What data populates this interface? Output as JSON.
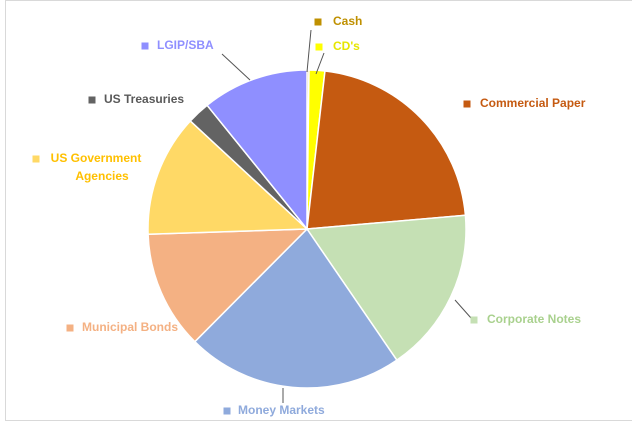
{
  "chart_data": {
    "type": "pie",
    "categories": [
      "Cash",
      "CD's",
      "Commercial Paper",
      "Corporate Notes",
      "Money Markets",
      "Municipal Bonds",
      "US Government Agencies",
      "US Treasuries",
      "LGIP/SBA"
    ],
    "values": [
      0.2,
      1.6,
      21.8,
      16.8,
      22,
      12,
      12.4,
      2.3,
      10.8
    ],
    "colors": [
      "#bf9000",
      "#ffff00",
      "#c55a11",
      "#c5e0b4",
      "#8faadc",
      "#f4b183",
      "#ffd966",
      "#636363",
      "#8f8fff"
    ],
    "label_colors": [
      "#bf9000",
      "#e6e600",
      "#c55a11",
      "#a9d18e",
      "#8faadc",
      "#f4b183",
      "#ffc000",
      "#595959",
      "#8f8fff"
    ]
  }
}
